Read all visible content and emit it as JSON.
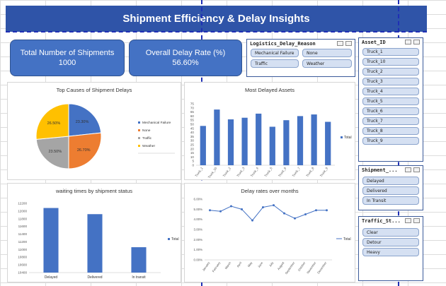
{
  "title": "Shipment Efficiency & Delay Insights",
  "kpis": {
    "total_label": "Total Number of Shipments",
    "total_value": "1000",
    "delay_label": "Overall Delay Rate (%)",
    "delay_value": "56.60%"
  },
  "slicers": {
    "logistics": {
      "title": "Logistics_Delay_Reason",
      "items": [
        "Mechanical Failure",
        "None",
        "Traffic",
        "Weather"
      ]
    },
    "asset": {
      "title": "Asset_ID",
      "items": [
        "Truck_1",
        "Truck_10",
        "Truck_2",
        "Truck_3",
        "Truck_4",
        "Truck_5",
        "Truck_6",
        "Truck_7",
        "Truck_8",
        "Truck_9"
      ]
    },
    "shipment": {
      "title": "Shipment_...",
      "items": [
        "Delayed",
        "Delivered",
        "In Transit"
      ]
    },
    "traffic": {
      "title": "Traffic_St...",
      "items": [
        "Clear",
        "Detour",
        "Heavy"
      ]
    }
  },
  "chart_data": [
    {
      "type": "pie",
      "title": "Top Causes of Shipment Delays",
      "categories": [
        "Mechanical Failure",
        "None",
        "Traffic",
        "Weather"
      ],
      "values": [
        23.3,
        26.7,
        23.5,
        26.5
      ],
      "labels": [
        "23.30%",
        "26.70%",
        "23.50%",
        "26.50%"
      ],
      "colors": [
        "#4472c4",
        "#ed7d31",
        "#a5a5a5",
        "#ffc000"
      ],
      "legend": "right"
    },
    {
      "type": "bar",
      "title": "Most Delayed Assets",
      "categories": [
        "Truck_1",
        "Truck_10",
        "Truck_2",
        "Truck_3",
        "Truck_4",
        "Truck_5",
        "Truck_6",
        "Truck_7",
        "Truck_8",
        "Truck_9"
      ],
      "series": [
        {
          "name": "Total",
          "values": [
            48,
            68,
            56,
            58,
            63,
            47,
            55,
            60,
            62,
            53
          ]
        }
      ],
      "yticks": [
        "0",
        "5",
        "10",
        "15",
        "20",
        "25",
        "30",
        "35",
        "40",
        "45",
        "50",
        "55",
        "60",
        "65",
        "70",
        "75"
      ],
      "ylim": [
        0,
        75
      ],
      "legend": "right"
    },
    {
      "type": "bar",
      "title": "waiting times by shipment status",
      "categories": [
        "Delayed",
        "Delivered",
        "In transit"
      ],
      "series": [
        {
          "name": "Total",
          "values": [
            12080,
            11920,
            11060
          ]
        }
      ],
      "yticks": [
        "10400",
        "10600",
        "10800",
        "11000",
        "11200",
        "11400",
        "11600",
        "11800",
        "12000",
        "12200"
      ],
      "ylim": [
        10400,
        12200
      ],
      "legend": "right"
    },
    {
      "type": "line",
      "title": "Delay rates over months",
      "categories": [
        "January",
        "February",
        "March",
        "April",
        "May",
        "June",
        "July",
        "August",
        "September",
        "October",
        "November",
        "December"
      ],
      "series": [
        {
          "name": "Total",
          "values": [
            4.9,
            4.8,
            5.3,
            5.0,
            3.9,
            5.2,
            5.4,
            4.6,
            4.1,
            4.5,
            4.9,
            4.9
          ]
        }
      ],
      "yticks": [
        "0.00%",
        "1.00%",
        "2.00%",
        "3.00%",
        "4.00%",
        "5.00%",
        "6.00%"
      ],
      "ylim": [
        0,
        6
      ],
      "legend": "right"
    }
  ]
}
